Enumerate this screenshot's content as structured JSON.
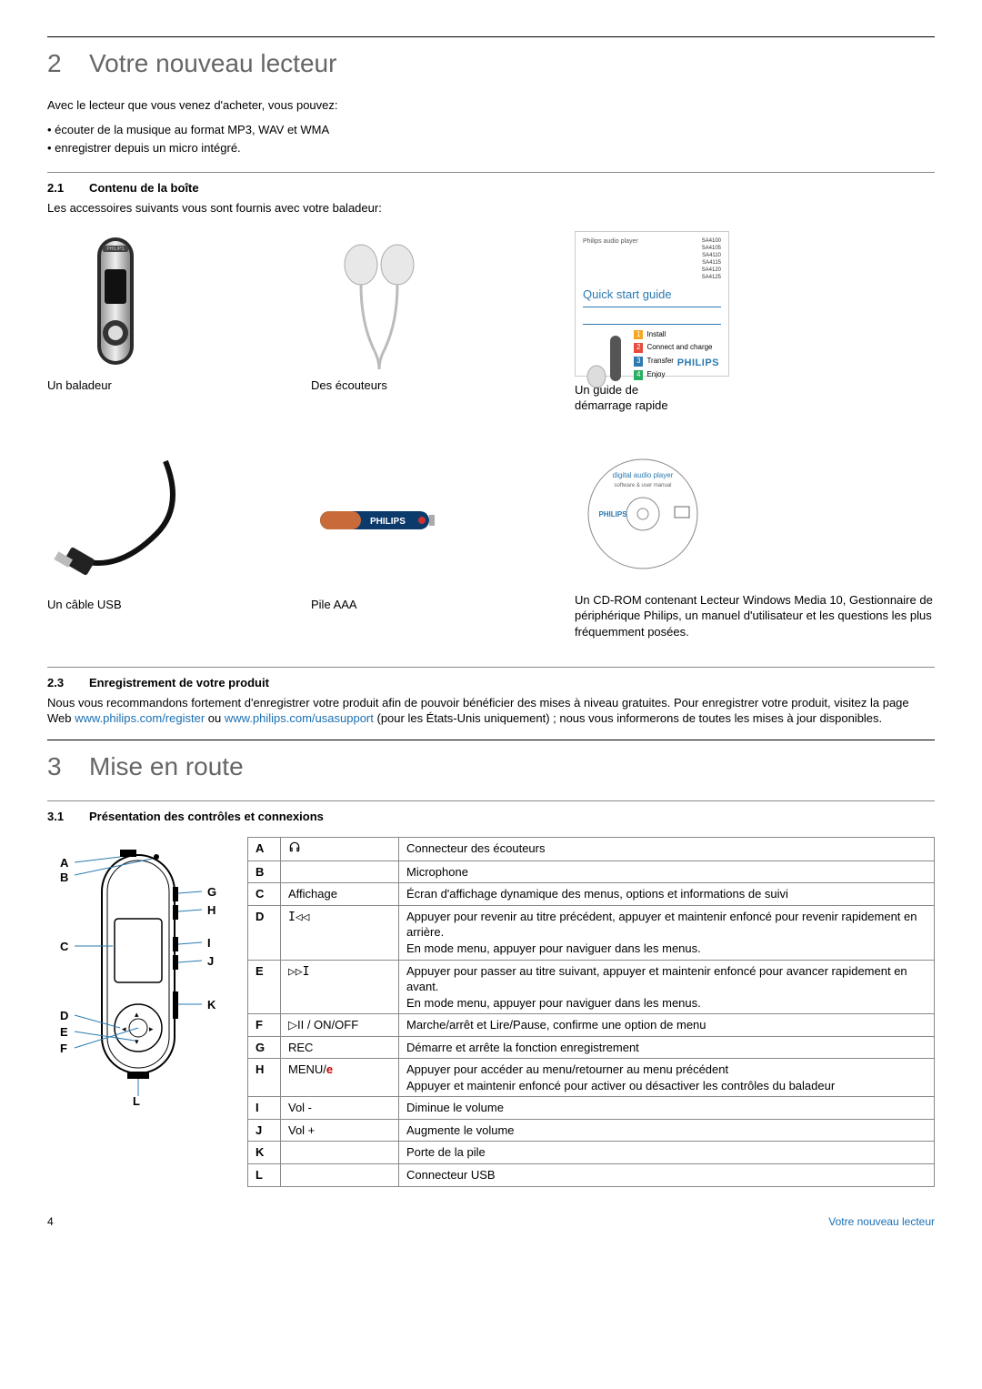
{
  "section2": {
    "number": "2",
    "title": "Votre nouveau lecteur",
    "intro": "Avec le lecteur que vous venez d'acheter, vous pouvez:",
    "bullets": [
      "écouter de la musique au format MP3, WAV et WMA",
      "enregistrer depuis un micro intégré."
    ]
  },
  "section2_1": {
    "number": "2.1",
    "title": "Contenu de la boîte",
    "text": "Les accessoires suivants vous sont fournis avec votre baladeur:",
    "items": [
      {
        "caption": "Un baladeur"
      },
      {
        "caption": "Des écouteurs"
      },
      {
        "caption": "Un guide de\ndémarrage rapide"
      },
      {
        "caption": "Un câble USB"
      },
      {
        "caption": "Pile AAA"
      },
      {
        "caption": "Un CD-ROM contenant Lecteur Windows Media 10, Gestionnaire de périphérique Philips, un manuel d'utilisateur et les questions les plus fréquemment posées."
      }
    ],
    "quickstart": {
      "small": "Philips audio player",
      "models": "SA4100\nSA4105\nSA4110\nSA4115\nSA4120\nSA4125",
      "title": "Quick start guide",
      "steps": [
        {
          "n": "1",
          "label": "Install",
          "color": "#f5a623"
        },
        {
          "n": "2",
          "label": "Connect and charge",
          "color": "#e74c3c"
        },
        {
          "n": "3",
          "label": "Transfer",
          "color": "#2a7ab0"
        },
        {
          "n": "4",
          "label": "Enjoy",
          "color": "#27ae60"
        }
      ],
      "logo": "PHILIPS"
    },
    "cd_text": "digital audio player",
    "cd_sub": "software & user manual",
    "philips": "PHILIPS"
  },
  "section2_3": {
    "number": "2.3",
    "title": "Enregistrement de votre produit",
    "text_before": "Nous vous recommandons fortement d'enregistrer votre produit afin de pouvoir bénéficier des mises à niveau gratuites. Pour enregistrer votre produit, visitez la page Web ",
    "link1": "www.philips.com/register",
    "mid": " ou ",
    "link2": "www.philips.com/usasupport",
    "text_after": " (pour les États-Unis uniquement) ; nous vous informerons de toutes les mises à jour disponibles."
  },
  "section3": {
    "number": "3",
    "title": "Mise en route"
  },
  "section3_1": {
    "number": "3.1",
    "title": "Présentation des contrôles et connexions",
    "labels": [
      "A",
      "B",
      "C",
      "D",
      "E",
      "F",
      "G",
      "H",
      "I",
      "J",
      "K",
      "L"
    ],
    "rows": [
      {
        "l": "A",
        "s": "headphones-icon",
        "sym": "",
        "desc": "Connecteur des écouteurs"
      },
      {
        "l": "B",
        "s": "",
        "sym": "",
        "desc": "Microphone"
      },
      {
        "l": "C",
        "s": "",
        "sym": "Affichage",
        "desc": "Écran d'affichage dynamique des menus, options et informations de suivi"
      },
      {
        "l": "D",
        "s": "prev-icon",
        "sym": "",
        "desc": "Appuyer pour revenir au titre précédent, appuyer et maintenir enfoncé pour revenir rapidement en arrière.\nEn mode menu, appuyer pour naviguer dans les menus."
      },
      {
        "l": "E",
        "s": "next-icon",
        "sym": "",
        "desc": "Appuyer pour passer au titre suivant, appuyer et maintenir enfoncé pour avancer rapidement en avant.\nEn mode menu, appuyer pour naviguer dans les menus."
      },
      {
        "l": "F",
        "s": "",
        "sym": "▷II / ON/OFF",
        "desc": "Marche/arrêt et Lire/Pause, confirme une option de menu"
      },
      {
        "l": "G",
        "s": "",
        "sym": "REC",
        "desc": "Démarre et arrête la fonction enregistrement"
      },
      {
        "l": "H",
        "s": "",
        "sym": "MENU/",
        "menu_e": "e",
        "desc": "Appuyer pour accéder au menu/retourner au menu précédent\nAppuyer et maintenir enfoncé pour activer ou désactiver les contrôles du baladeur"
      },
      {
        "l": "I",
        "s": "",
        "sym": "Vol -",
        "desc": "Diminue le volume"
      },
      {
        "l": "J",
        "s": "",
        "sym": "Vol +",
        "desc": "Augmente le volume"
      },
      {
        "l": "K",
        "s": "",
        "sym": "",
        "desc": "Porte de la pile"
      },
      {
        "l": "L",
        "s": "",
        "sym": "",
        "desc": "Connecteur USB"
      }
    ]
  },
  "footer": {
    "page": "4",
    "right": "Votre nouveau lecteur"
  },
  "colors": {
    "link": "#1a6fb3",
    "heading": "#666666",
    "rule": "#000000",
    "philips": "#2a7ab0"
  }
}
